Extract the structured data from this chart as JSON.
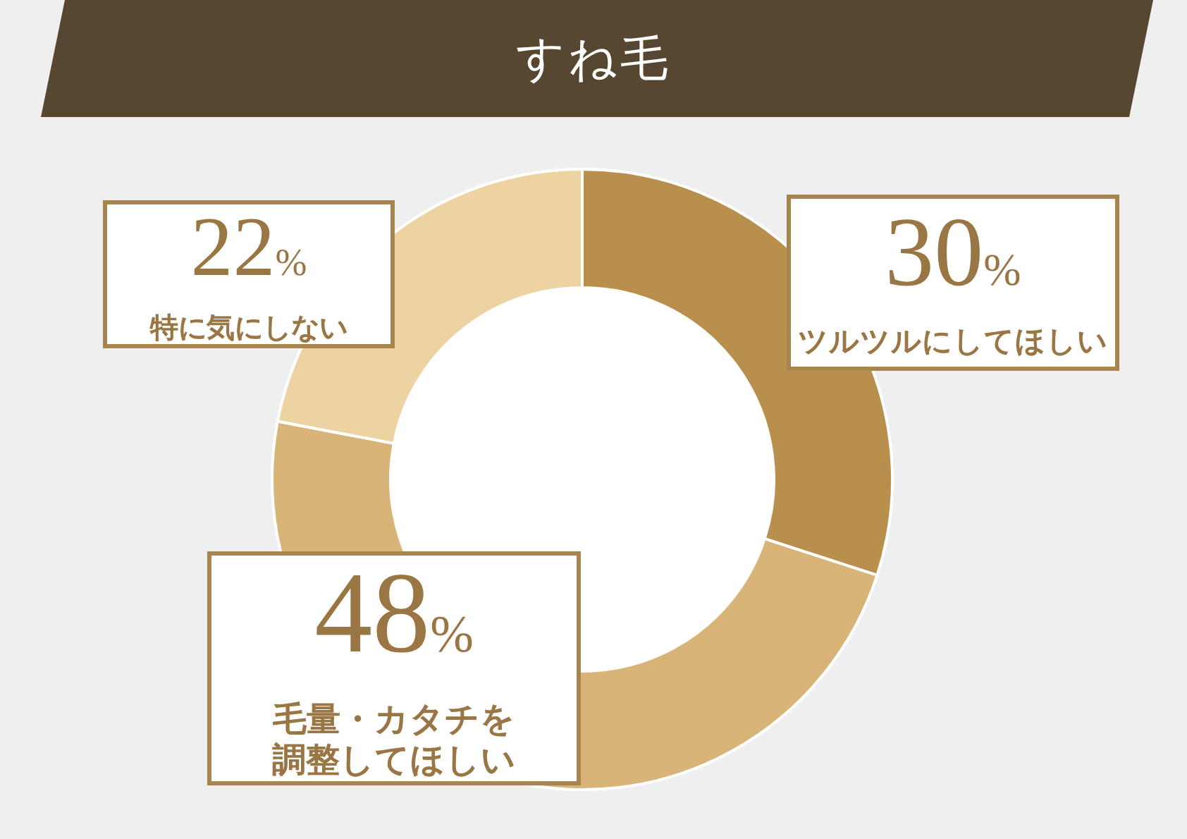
{
  "chart_data": {
    "type": "donut",
    "title": "すね毛",
    "categories": [
      "ツルツルにしてほしい",
      "毛量・カタチを調整してほしい",
      "特に気にしない"
    ],
    "values": [
      30,
      48,
      22
    ],
    "colors": [
      "#b98f4e",
      "#d8b478",
      "#edd3a2"
    ],
    "value_labels": [
      "30%",
      "48%",
      "22%"
    ]
  }
}
